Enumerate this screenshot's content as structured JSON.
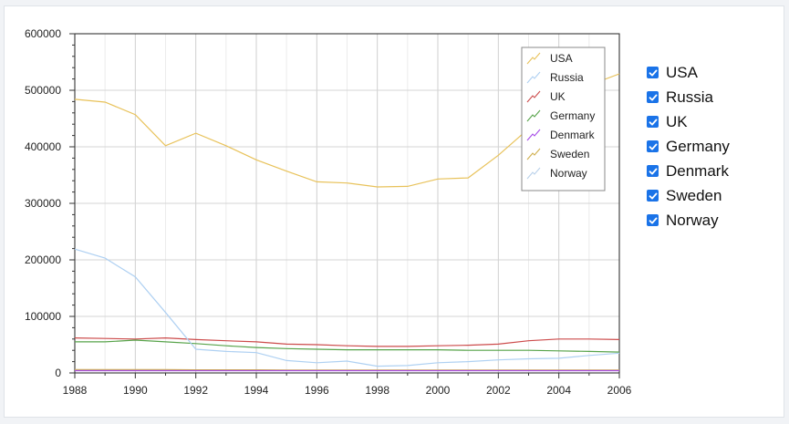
{
  "chart_data": {
    "type": "line",
    "title": "",
    "xlabel": "",
    "ylabel": "",
    "xlim": [
      1988,
      2006
    ],
    "ylim": [
      0,
      600000
    ],
    "x_ticks": [
      "1988",
      "1990",
      "1992",
      "1994",
      "1996",
      "1998",
      "2000",
      "2002",
      "2004",
      "2006"
    ],
    "y_ticks": [
      "0",
      "100000",
      "200000",
      "300000",
      "400000",
      "500000",
      "600000"
    ],
    "grid": true,
    "legend_position": "top-right",
    "x": [
      1988,
      1989,
      1990,
      1991,
      1992,
      1993,
      1994,
      1995,
      1996,
      1997,
      1998,
      1999,
      2000,
      2001,
      2002,
      2003,
      2004,
      2005,
      2006
    ],
    "series": [
      {
        "name": "USA",
        "color": "#e8c25a",
        "values": [
          484000,
          479000,
          457000,
          402000,
          424000,
          402000,
          377000,
          357000,
          338000,
          336000,
          329000,
          330000,
          343000,
          345000,
          385000,
          432000,
          475000,
          509000,
          529000
        ]
      },
      {
        "name": "Russia",
        "color": "#aed0f2",
        "values": [
          219000,
          203000,
          170000,
          107000,
          42000,
          38000,
          36000,
          22000,
          18000,
          21000,
          12000,
          13000,
          18000,
          20000,
          23000,
          25000,
          26000,
          31000,
          35000
        ]
      },
      {
        "name": "UK",
        "color": "#cc4b4b",
        "values": [
          62000,
          61000,
          60000,
          62000,
          59000,
          57000,
          55000,
          51000,
          50000,
          48000,
          47000,
          47000,
          48000,
          49000,
          51000,
          57000,
          60000,
          60000,
          59000
        ]
      },
      {
        "name": "Germany",
        "color": "#57a34a",
        "values": [
          55000,
          55000,
          58000,
          55000,
          52000,
          48000,
          45000,
          43000,
          42000,
          41000,
          41000,
          41000,
          41000,
          40000,
          40000,
          40000,
          39000,
          38000,
          37000
        ]
      },
      {
        "name": "Denmark",
        "color": "#a64be8",
        "values": [
          4000,
          4000,
          4000,
          4000,
          4000,
          4000,
          4000,
          4000,
          4000,
          4000,
          4000,
          4000,
          4000,
          4000,
          4000,
          4000,
          4000,
          4000,
          4000
        ]
      },
      {
        "name": "Sweden",
        "color": "#cfae4c",
        "values": [
          6000,
          6000,
          6000,
          6000,
          5500,
          5500,
          5500,
          5000,
          5000,
          5000,
          5000,
          5000,
          5000,
          5000,
          5000,
          5000,
          5000,
          5000,
          5000
        ]
      },
      {
        "name": "Norway",
        "color": "#b9d1ea",
        "values": [
          5000,
          5000,
          5000,
          5000,
          5000,
          5000,
          5000,
          4500,
          4500,
          4500,
          4500,
          4500,
          4500,
          4500,
          4500,
          4500,
          4500,
          4500,
          4500
        ]
      }
    ]
  },
  "toggles": [
    {
      "label": "USA",
      "checked": true
    },
    {
      "label": "Russia",
      "checked": true
    },
    {
      "label": "UK",
      "checked": true
    },
    {
      "label": "Germany",
      "checked": true
    },
    {
      "label": "Denmark",
      "checked": true
    },
    {
      "label": "Sweden",
      "checked": true
    },
    {
      "label": "Norway",
      "checked": true
    }
  ]
}
